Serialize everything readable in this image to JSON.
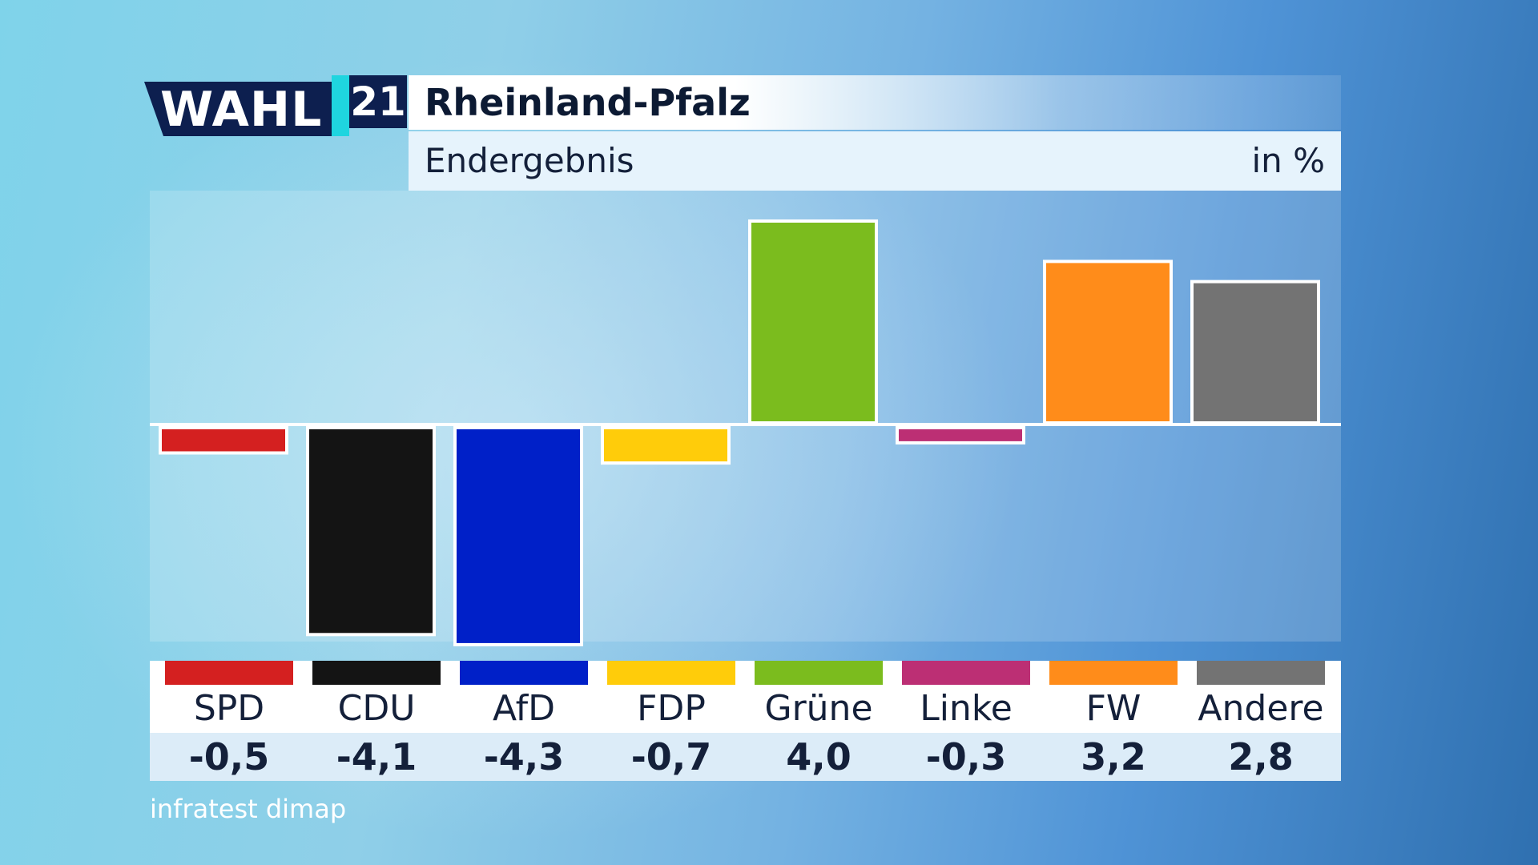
{
  "logo": {
    "word": "WAHL",
    "number": "21"
  },
  "header": {
    "title": "Rheinland-Pfalz",
    "subtitle": "Endergebnis",
    "unit": "in %"
  },
  "source": "infratest dimap",
  "colors": {
    "SPD": "#d42020",
    "CDU": "#141414",
    "AfD": "#0020c8",
    "FDP": "#ffcc0a",
    "Grüne": "#7bbc1e",
    "Linke": "#bc2f74",
    "FW": "#ff8c1a",
    "Andere": "#737373"
  },
  "chart_data": {
    "type": "bar",
    "title": "Rheinland-Pfalz",
    "subtitle": "Endergebnis",
    "ylabel": "in %",
    "categories": [
      "SPD",
      "CDU",
      "AfD",
      "FDP",
      "Grüne",
      "Linke",
      "FW",
      "Andere"
    ],
    "values": [
      -0.5,
      -4.1,
      -4.3,
      -0.7,
      4.0,
      -0.3,
      3.2,
      2.8
    ],
    "value_labels": [
      "-0,5",
      "-4,1",
      "-4,3",
      "-0,7",
      "4,0",
      "-0,3",
      "3,2",
      "2,8"
    ],
    "colors": [
      "#d42020",
      "#141414",
      "#0020c8",
      "#ffcc0a",
      "#7bbc1e",
      "#bc2f74",
      "#ff8c1a",
      "#737373"
    ],
    "ylim": [
      -4.5,
      4.5
    ],
    "grid": false
  }
}
